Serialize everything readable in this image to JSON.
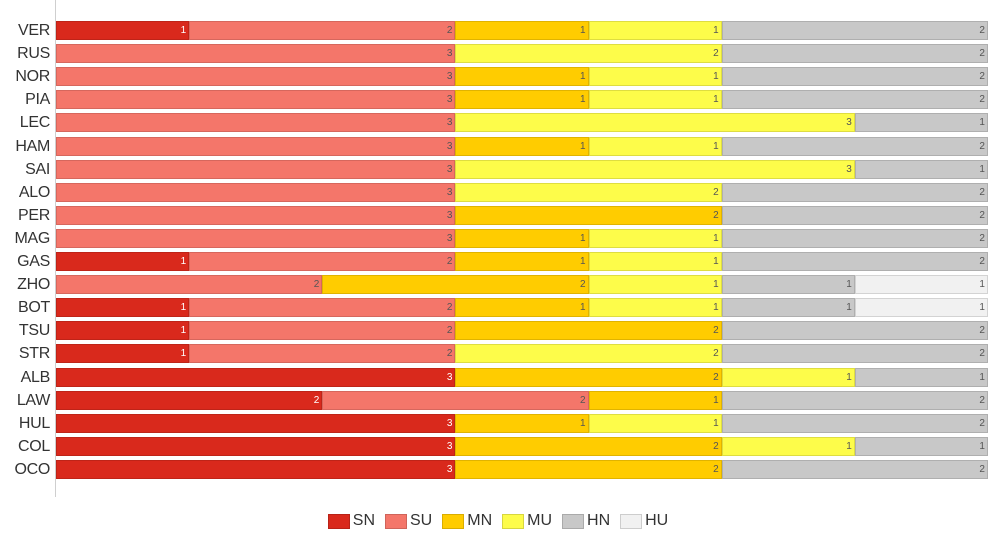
{
  "chart_data": {
    "type": "bar",
    "orientation": "horizontal",
    "stacked": true,
    "title": "",
    "xlabel": "",
    "ylabel": "",
    "xlim": [
      0,
      7
    ],
    "legend_position": "bottom",
    "categories": [
      "VER",
      "RUS",
      "NOR",
      "PIA",
      "LEC",
      "HAM",
      "SAI",
      "ALO",
      "PER",
      "MAG",
      "GAS",
      "ZHO",
      "BOT",
      "TSU",
      "STR",
      "ALB",
      "LAW",
      "HUL",
      "COL",
      "OCO"
    ],
    "series": [
      {
        "name": "SN",
        "color": "#d9291c",
        "values": [
          1,
          0,
          0,
          0,
          0,
          0,
          0,
          0,
          0,
          0,
          1,
          0,
          1,
          1,
          1,
          3,
          2,
          3,
          3,
          3
        ]
      },
      {
        "name": "SU",
        "color": "#f4766a",
        "values": [
          2,
          3,
          3,
          3,
          3,
          3,
          3,
          3,
          3,
          3,
          2,
          2,
          2,
          2,
          2,
          0,
          2,
          0,
          0,
          0
        ]
      },
      {
        "name": "MN",
        "color": "#ffcc00",
        "values": [
          1,
          0,
          1,
          1,
          0,
          1,
          0,
          0,
          2,
          1,
          1,
          2,
          1,
          2,
          0,
          2,
          1,
          1,
          2,
          2
        ]
      },
      {
        "name": "MU",
        "color": "#fdfc4a",
        "values": [
          1,
          2,
          1,
          1,
          3,
          1,
          3,
          2,
          0,
          1,
          1,
          1,
          1,
          0,
          2,
          1,
          0,
          1,
          1,
          0
        ]
      },
      {
        "name": "HN",
        "color": "#c8c8c8",
        "values": [
          2,
          2,
          2,
          2,
          1,
          2,
          1,
          2,
          2,
          2,
          2,
          1,
          1,
          2,
          2,
          1,
          2,
          2,
          1,
          2
        ]
      },
      {
        "name": "HU",
        "color": "#f1f1f1",
        "values": [
          0,
          0,
          0,
          0,
          0,
          0,
          0,
          0,
          0,
          0,
          0,
          1,
          1,
          0,
          0,
          0,
          0,
          0,
          0,
          0
        ]
      }
    ]
  }
}
